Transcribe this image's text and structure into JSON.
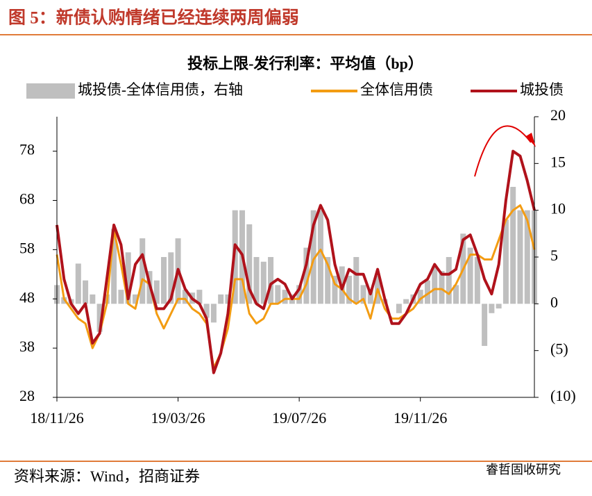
{
  "figure_title": "图 5：新债认购情绪已经连续两周偏弱",
  "source": "资料来源：Wind，招商证券",
  "watermark": "睿哲固收研究",
  "chart_data": {
    "type": "bar-line",
    "title": "投标上限-发行利率：平均值（bp）",
    "categories": [
      "18/11/26",
      null,
      null,
      null,
      null,
      null,
      null,
      null,
      null,
      null,
      null,
      null,
      null,
      null,
      null,
      null,
      null,
      "19/03/26",
      null,
      null,
      null,
      null,
      null,
      null,
      null,
      null,
      null,
      null,
      null,
      null,
      null,
      null,
      null,
      null,
      "19/07/26",
      null,
      null,
      null,
      null,
      null,
      null,
      null,
      null,
      null,
      null,
      null,
      null,
      null,
      null,
      null,
      null,
      "19/11/26",
      null,
      null,
      null,
      null,
      null,
      null,
      null,
      null,
      null,
      null,
      null,
      null,
      null,
      null,
      null,
      null
    ],
    "ylim": [
      28,
      85
    ],
    "yticks": [
      28,
      38,
      48,
      58,
      68,
      78
    ],
    "y2lim": [
      -10,
      20
    ],
    "y2ticks": [
      {
        "value": -10,
        "label": "(10)"
      },
      {
        "value": -5,
        "label": "(5)"
      },
      0,
      5,
      10,
      15,
      20
    ],
    "series": [
      {
        "name": "城投债-全体信用债，右轴",
        "color": "#bfbfbf",
        "type": "bar",
        "axis": "y2",
        "values": [
          2,
          0.7,
          0.5,
          4.3,
          2.5,
          1,
          -3,
          1,
          8,
          1.5,
          5.5,
          1,
          7,
          3.5,
          2.5,
          5,
          5.5,
          7,
          1.5,
          1.2,
          1.5,
          -1.5,
          -2,
          1,
          1,
          10,
          10,
          8.5,
          5,
          4.5,
          5,
          2,
          1.5,
          1,
          2,
          6,
          10,
          10,
          5,
          3,
          4,
          3,
          5,
          2,
          1.5,
          3,
          0.5,
          0,
          -1,
          0.5,
          1,
          1.5,
          2.5,
          4,
          3.5,
          5,
          2,
          7.5,
          6,
          5,
          -4.5,
          -1,
          -0.5,
          9,
          12.5,
          10,
          10,
          10
        ]
      },
      {
        "name": "全体信用债",
        "color": "#f39c12",
        "type": "line",
        "values": [
          57,
          48,
          46,
          44,
          43,
          38,
          41,
          47,
          62,
          55,
          47,
          46,
          52,
          51,
          45,
          42,
          45,
          48,
          48,
          46,
          45,
          43,
          34,
          37,
          42,
          52,
          52,
          45,
          43,
          44,
          47,
          47,
          48,
          48,
          48,
          51,
          56,
          58,
          55,
          51,
          50,
          48,
          47,
          48,
          44,
          50,
          46,
          44,
          44,
          45,
          46,
          48,
          49,
          50,
          50,
          49,
          51,
          54,
          57,
          57,
          56,
          56,
          60,
          64,
          66,
          67,
          64,
          58
        ]
      },
      {
        "name": "城投债",
        "color": "#b0121b",
        "type": "line",
        "values": [
          63,
          52,
          47,
          45,
          47,
          39,
          41,
          52,
          63,
          59,
          48,
          55,
          57,
          51,
          46,
          46,
          48,
          54,
          50,
          48,
          47,
          44,
          33,
          37,
          45,
          59,
          57,
          50,
          47,
          46,
          51,
          52,
          51,
          48,
          50,
          55,
          63,
          67,
          64,
          55,
          50,
          54,
          53,
          53,
          49,
          54,
          48,
          43,
          43,
          45,
          48,
          51,
          52,
          55,
          53,
          53,
          54,
          60,
          61,
          57,
          52,
          49,
          55,
          68,
          78,
          77,
          72,
          66
        ]
      }
    ]
  }
}
